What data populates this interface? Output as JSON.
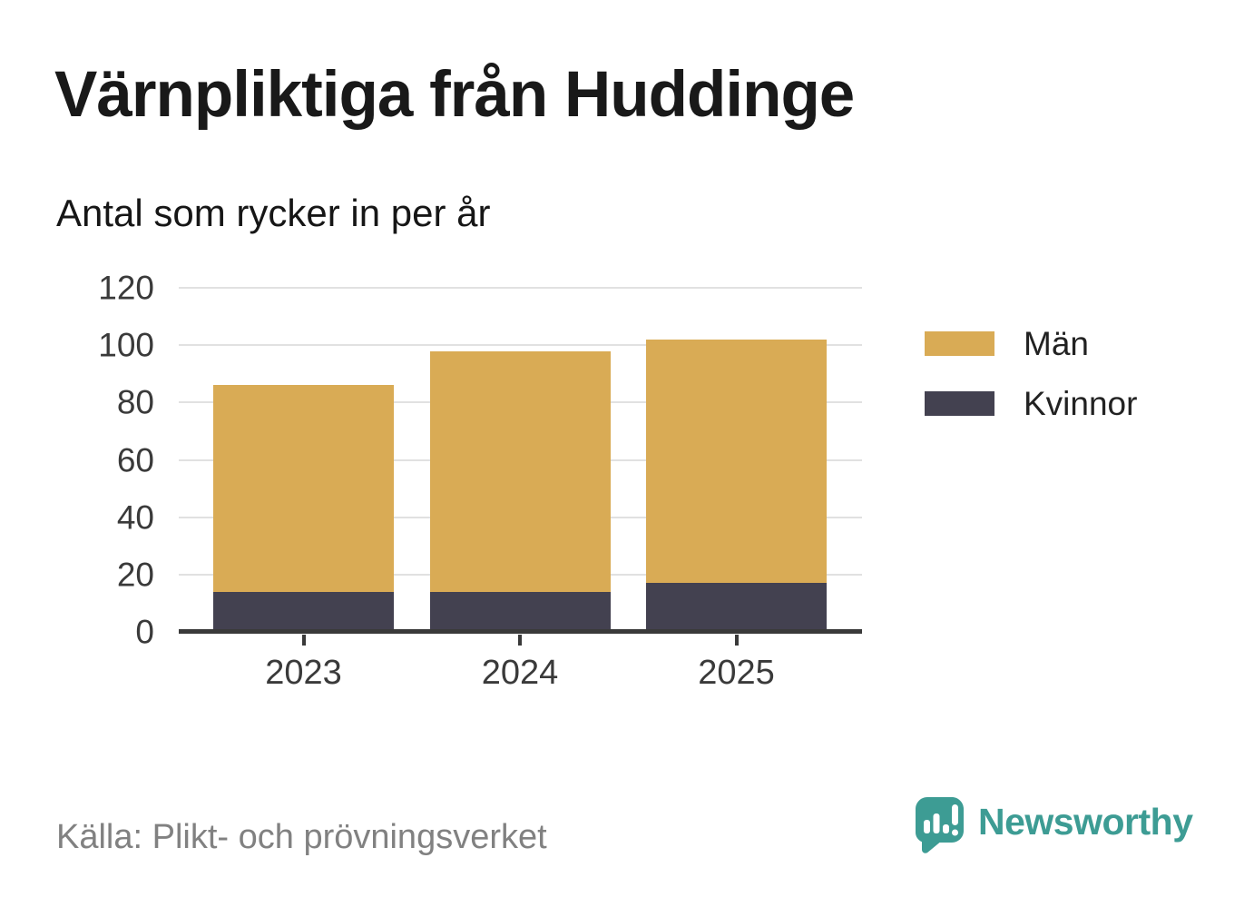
{
  "header": {
    "title": "Värnpliktiga från Huddinge",
    "subtitle": "Antal som rycker in per år"
  },
  "chart_data": {
    "type": "bar",
    "stacked": true,
    "title": "Värnpliktiga från Huddinge",
    "subtitle": "Antal som rycker in per år",
    "categories": [
      "2023",
      "2024",
      "2025"
    ],
    "series": [
      {
        "name": "Män",
        "color": "#D9AB55",
        "values": [
          72,
          84,
          85
        ]
      },
      {
        "name": "Kvinnor",
        "color": "#434150",
        "values": [
          14,
          14,
          17
        ]
      }
    ],
    "stack_order_bottom_to_top": [
      "Kvinnor",
      "Män"
    ],
    "totals": [
      86,
      98,
      102
    ],
    "xlabel": "",
    "ylabel": "",
    "ylim": [
      0,
      120
    ],
    "yticks": [
      0,
      20,
      40,
      60,
      80,
      100,
      120
    ],
    "grid": true,
    "legend_position": "right"
  },
  "footer": {
    "source": "Källa: Plikt- och prövningsverket",
    "brand_name": "Newsworthy"
  },
  "colors": {
    "men_gold": "#D9AB55",
    "women_dark": "#434150",
    "axis": "#3A3A3A",
    "gridline": "#E1E1E1",
    "title_text": "#191919",
    "tick_label": "#3A3A3A",
    "source_text": "#818181",
    "brand_teal": "#3D9C94",
    "background": "#FFFFFF"
  }
}
